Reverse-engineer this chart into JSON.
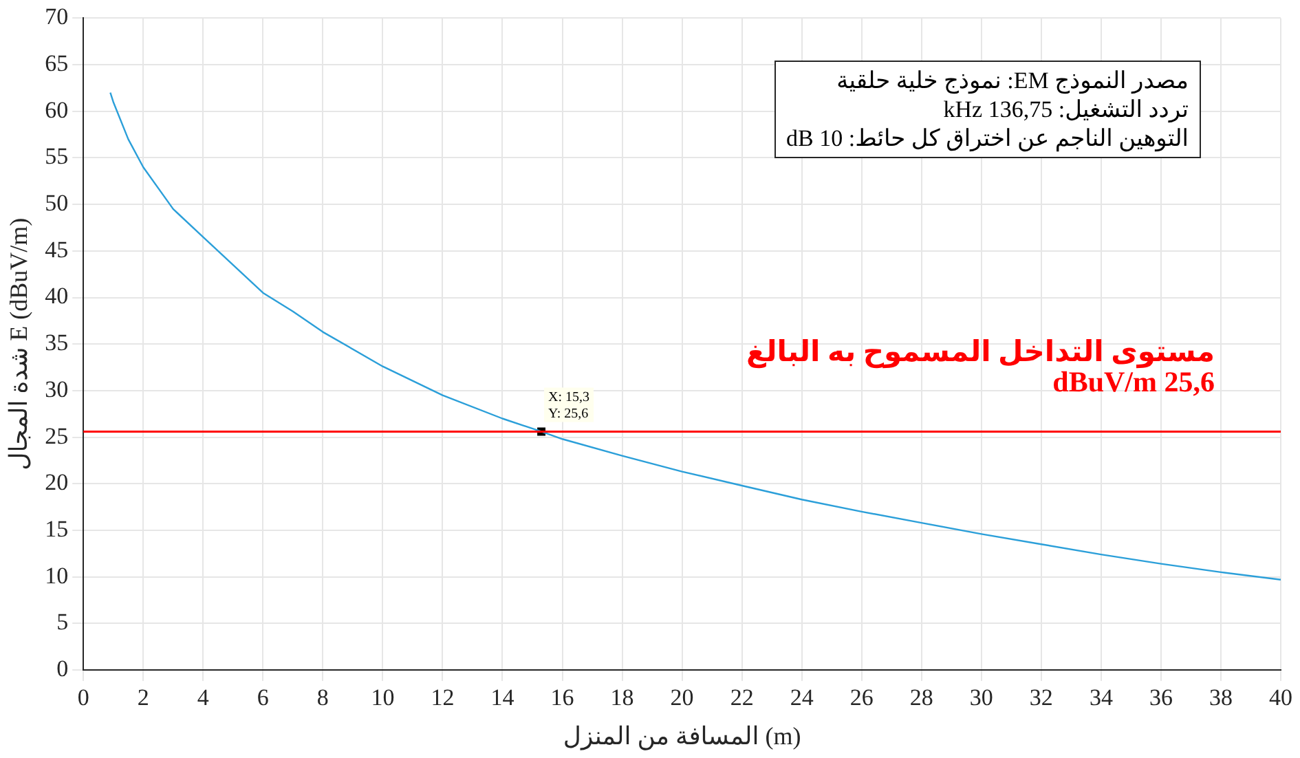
{
  "chart_data": {
    "type": "line",
    "xlabel": "المسافة من المنزل (m)",
    "ylabel": "شدة المجال E (dBuV/m)",
    "xlim": [
      0,
      40
    ],
    "xticks": [
      0,
      2,
      4,
      6,
      8,
      10,
      12,
      14,
      16,
      18,
      20,
      22,
      24,
      26,
      28,
      30,
      32,
      34,
      36,
      38,
      40
    ],
    "ylim": [
      0,
      70
    ],
    "yticks": [
      0,
      5,
      10,
      15,
      20,
      25,
      30,
      35,
      40,
      45,
      50,
      55,
      60,
      65,
      70
    ],
    "grid": true,
    "legend": false,
    "series": [
      {
        "color": "#2b9fd9",
        "marker": "none",
        "x": [
          0.9,
          1,
          1.5,
          2,
          3,
          4,
          5,
          6,
          7,
          8,
          10,
          12,
          14,
          15.3,
          16,
          18,
          20,
          22,
          24,
          26,
          28,
          30,
          32,
          34,
          36,
          38,
          40
        ],
        "values": [
          62,
          61,
          57,
          54,
          49.5,
          46.5,
          43.5,
          40.5,
          38.5,
          36.3,
          32.6,
          29.5,
          27,
          25.6,
          24.8,
          23,
          21.3,
          19.8,
          18.3,
          17,
          15.8,
          14.6,
          13.5,
          12.4,
          11.4,
          10.5,
          9.7
        ]
      },
      {
        "type": "scatter",
        "color": "#000000",
        "marker": "square",
        "x": [
          15.3
        ],
        "values": [
          25.6
        ]
      }
    ],
    "ref_lines": [
      {
        "axis": "y",
        "value": 25.6,
        "label": "مستوى التداخل المسموح به البالغ 25,6 dBuV/m",
        "color": "#ff0000"
      }
    ],
    "annotations": [
      "مصدر النموذج EM: نموذج خلية حلقية",
      "تردد التشغيل: 136,75 kHz",
      "التوهين الناجم عن اختراق كل حائط: 10 dB",
      {
        "text": "X: 15,3",
        "x": 15.3,
        "y": 25.6
      },
      {
        "text": "Y: 25,6",
        "x": 15.3,
        "y": 25.6
      }
    ]
  }
}
